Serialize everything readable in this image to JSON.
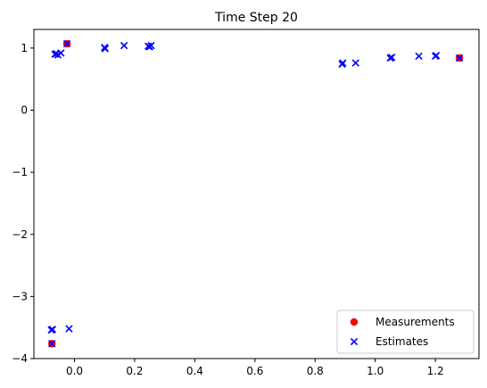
{
  "chart_data": {
    "type": "scatter",
    "title": "Time Step 20",
    "xlabel": "",
    "ylabel": "",
    "xlim": [
      -0.135,
      1.345
    ],
    "ylim": [
      -4.0,
      1.3
    ],
    "x_ticks": [
      0.0,
      0.2,
      0.4,
      0.6,
      0.8,
      1.0,
      1.2
    ],
    "x_tick_labels": [
      "0.0",
      "0.2",
      "0.4",
      "0.6",
      "0.8",
      "1.0",
      "1.2"
    ],
    "y_ticks": [
      -4,
      -3,
      -2,
      -1,
      0,
      1
    ],
    "y_tick_labels": [
      "−4",
      "−3",
      "−2",
      "−1",
      "0",
      "1"
    ],
    "grid": false,
    "legend_position": "lower-right",
    "series": [
      {
        "name": "Measurements",
        "marker": "circle",
        "color": "#ff0000",
        "points": [
          {
            "x": -0.075,
            "y": -3.76
          },
          {
            "x": -0.025,
            "y": 1.07
          },
          {
            "x": 1.28,
            "y": 0.84
          }
        ]
      },
      {
        "name": "Estimates",
        "marker": "x",
        "color": "#0000ff",
        "points": [
          {
            "x": -0.075,
            "y": -3.76
          },
          {
            "x": -0.077,
            "y": -3.54
          },
          {
            "x": -0.073,
            "y": -3.53
          },
          {
            "x": -0.018,
            "y": -3.52
          },
          {
            "x": -0.065,
            "y": 0.9
          },
          {
            "x": -0.06,
            "y": 0.91
          },
          {
            "x": -0.055,
            "y": 0.89
          },
          {
            "x": -0.045,
            "y": 0.92
          },
          {
            "x": -0.025,
            "y": 1.07
          },
          {
            "x": 0.1,
            "y": 1.01
          },
          {
            "x": 0.102,
            "y": 0.99
          },
          {
            "x": 0.165,
            "y": 1.04
          },
          {
            "x": 0.245,
            "y": 1.03
          },
          {
            "x": 0.25,
            "y": 1.02
          },
          {
            "x": 0.255,
            "y": 1.04
          },
          {
            "x": 0.89,
            "y": 0.74
          },
          {
            "x": 0.892,
            "y": 0.76
          },
          {
            "x": 0.935,
            "y": 0.76
          },
          {
            "x": 1.05,
            "y": 0.84
          },
          {
            "x": 1.055,
            "y": 0.85
          },
          {
            "x": 1.145,
            "y": 0.87
          },
          {
            "x": 1.2,
            "y": 0.87
          },
          {
            "x": 1.203,
            "y": 0.88
          },
          {
            "x": 1.28,
            "y": 0.84
          }
        ]
      }
    ]
  }
}
